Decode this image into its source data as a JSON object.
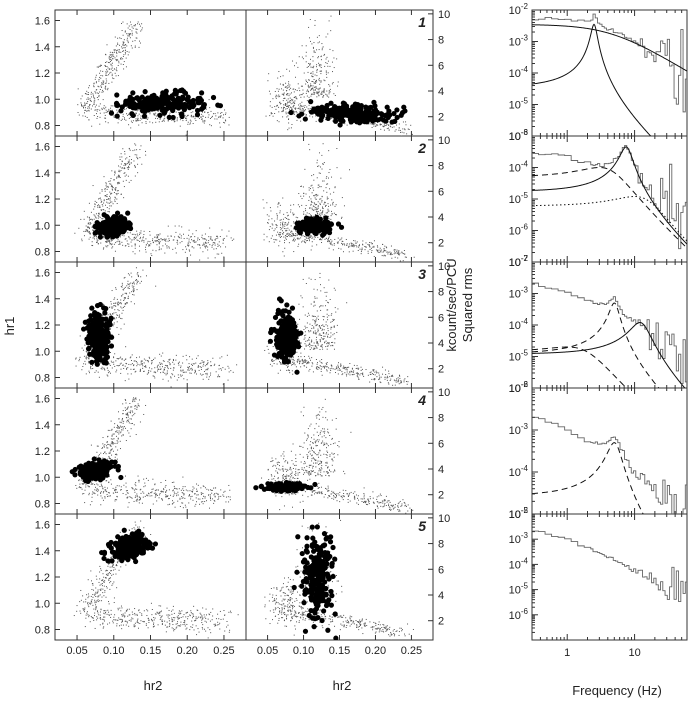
{
  "figure": {
    "left_ylabel": "hr1",
    "mid_ylabel": "kcount/sec/PCU",
    "right_ylabel": "Squared rms",
    "left_xlabel": "hr2",
    "mid_xlabel": "hr2",
    "right_xlabel": "Frequency (Hz)"
  },
  "chart_data": [
    {
      "panel": "color-color",
      "type": "scatter",
      "xlabel": "hr2",
      "ylabel": "hr1",
      "xlim": [
        0.02,
        0.28
      ],
      "ylim": [
        0.72,
        1.68
      ],
      "xticks": [
        0.05,
        0.1,
        0.15,
        0.2,
        0.25
      ],
      "xtick_labels": [
        "0.05",
        "0.10",
        "0.15",
        "0.20",
        "0.25"
      ],
      "yticks": [
        0.8,
        1.0,
        1.2,
        1.4,
        1.6
      ],
      "ytick_labels": [
        "0.8",
        "1.0",
        "1.2",
        "1.4",
        "1.6"
      ],
      "background_track": [
        {
          "x": 0.06,
          "y": 0.98
        },
        {
          "x": 0.07,
          "y": 1.15
        },
        {
          "x": 0.08,
          "y": 1.28
        },
        {
          "x": 0.09,
          "y": 1.38
        },
        {
          "x": 0.1,
          "y": 1.46
        },
        {
          "x": 0.11,
          "y": 1.52
        },
        {
          "x": 0.12,
          "y": 1.56
        },
        {
          "x": 0.065,
          "y": 0.92
        },
        {
          "x": 0.09,
          "y": 0.88
        },
        {
          "x": 0.12,
          "y": 0.88
        },
        {
          "x": 0.15,
          "y": 0.89
        },
        {
          "x": 0.18,
          "y": 0.88
        },
        {
          "x": 0.21,
          "y": 0.87
        },
        {
          "x": 0.24,
          "y": 0.88
        }
      ],
      "rows": [
        {
          "label": "1",
          "highlight": {
            "x_center": 0.165,
            "y_center": 0.97,
            "x_spread": 0.055,
            "y_spread": 0.09,
            "tilt": 0.5
          }
        },
        {
          "label": "2",
          "highlight": {
            "x_center": 0.1,
            "y_center": 0.99,
            "x_spread": 0.02,
            "y_spread": 0.08,
            "tilt": 0.8
          }
        },
        {
          "label": "3",
          "highlight": {
            "x_center": 0.08,
            "y_center": 1.12,
            "x_spread": 0.015,
            "y_spread": 0.2,
            "tilt": 6.0
          }
        },
        {
          "label": "4",
          "highlight": {
            "x_center": 0.075,
            "y_center": 1.05,
            "x_spread": 0.022,
            "y_spread": 0.07,
            "tilt": 4.5
          }
        },
        {
          "label": "5",
          "highlight": {
            "x_center": 0.12,
            "y_center": 1.42,
            "x_spread": 0.025,
            "y_spread": 0.1,
            "tilt": 6.5
          }
        }
      ]
    },
    {
      "panel": "hardness-intensity",
      "type": "scatter",
      "xlabel": "hr2",
      "ylabel": "kcount/sec/PCU",
      "xlim": [
        0.02,
        0.28
      ],
      "ylim": [
        0.5,
        10.3
      ],
      "xticks": [
        0.05,
        0.1,
        0.15,
        0.2,
        0.25
      ],
      "xtick_labels": [
        "0.05",
        "0.10",
        "0.15",
        "0.20",
        "0.25"
      ],
      "yticks": [
        2,
        4,
        6,
        8,
        10
      ],
      "ytick_labels": [
        "2",
        "4",
        "6",
        "8",
        "10"
      ],
      "rows": [
        {
          "label": "1",
          "highlight": {
            "x_center": 0.165,
            "y_center": 2.3,
            "x_spread": 0.06,
            "y_spread": 0.7,
            "tilt": -15
          }
        },
        {
          "label": "2",
          "highlight": {
            "x_center": 0.115,
            "y_center": 3.3,
            "x_spread": 0.02,
            "y_spread": 0.6,
            "tilt": 0
          }
        },
        {
          "label": "3",
          "highlight": {
            "x_center": 0.075,
            "y_center": 4.5,
            "x_spread": 0.015,
            "y_spread": 2.0,
            "tilt": 40
          }
        },
        {
          "label": "4",
          "highlight": {
            "x_center": 0.075,
            "y_center": 2.6,
            "x_spread": 0.025,
            "y_spread": 0.3,
            "tilt": 0
          }
        },
        {
          "label": "5",
          "highlight": {
            "x_center": 0.12,
            "y_center": 5.5,
            "x_spread": 0.02,
            "y_spread": 3.5,
            "tilt": 30
          }
        }
      ]
    },
    {
      "panel": "power-spectra",
      "type": "line",
      "xlabel": "Frequency (Hz)",
      "ylabel": "Squared rms",
      "xscale": "log",
      "yscale": "log",
      "xlim": [
        0.3,
        60
      ],
      "xticks": [
        1,
        10
      ],
      "xtick_labels": [
        "1",
        "10"
      ],
      "rows": [
        {
          "label": "1",
          "ylim": [
            1e-06,
            0.01
          ],
          "ytick_labels": [
            "10-6",
            "10-5",
            "10-4",
            "10-3",
            "10-2"
          ],
          "psd_norm": 0.006,
          "psd_index": 1.3,
          "psd_break": 3.0,
          "qpo": {
            "freq": 2.5,
            "width": 0.25,
            "peak": 0.0035
          },
          "components": [
            {
              "kind": "lorentzian",
              "style": "solid",
              "freq": 2.5,
              "width": 0.25,
              "peak": 0.0035
            },
            {
              "kind": "broken-powerlaw",
              "style": "solid",
              "norm": 0.0035,
              "break": 3.0,
              "index": 1.3
            }
          ]
        },
        {
          "label": "2",
          "ylim": [
            1e-07,
            0.001
          ],
          "ytick_labels": [
            "10-7",
            "10-6",
            "10-5",
            "10-4",
            "10-3"
          ],
          "psd_norm": 0.0006,
          "psd_index": 1.2,
          "psd_break": 1.0,
          "qpo": {
            "freq": 7.5,
            "width": 1.5,
            "peak": 0.00045
          },
          "components": [
            {
              "kind": "lorentzian",
              "style": "solid",
              "freq": 7.5,
              "width": 1.5,
              "peak": 0.00045
            },
            {
              "kind": "lorentzian",
              "style": "dashed",
              "freq": 3.0,
              "width": 3.0,
              "peak": 0.0001
            },
            {
              "kind": "lorentzian",
              "style": "dotted",
              "freq": 10,
              "width": 10,
              "peak": 1.2e-05
            }
          ]
        },
        {
          "label": "3",
          "ylim": [
            1e-06,
            0.01
          ],
          "ytick_labels": [
            "10-6",
            "10-5",
            "10-4",
            "10-3",
            "10-2"
          ],
          "psd_norm": 0.005,
          "psd_index": 1.2,
          "psd_break": 0.6,
          "qpo": {
            "freq": 5.0,
            "width": 0.8,
            "peak": 0.0005
          },
          "components": [
            {
              "kind": "lorentzian",
              "style": "dashed",
              "freq": 5.0,
              "width": 0.8,
              "peak": 0.0005
            },
            {
              "kind": "lorentzian",
              "style": "dashed",
              "freq": 1.0,
              "width": 1.5,
              "peak": 2e-05
            },
            {
              "kind": "lorentzian",
              "style": "solid",
              "freq": 12,
              "width": 4,
              "peak": 0.00012
            }
          ]
        },
        {
          "label": "4",
          "ylim": [
            1e-05,
            0.01
          ],
          "ytick_labels": [
            "10-5",
            "10-4",
            "10-3",
            "10-2"
          ],
          "psd_norm": 0.005,
          "psd_index": 1.3,
          "psd_break": 0.6,
          "qpo": {
            "freq": 5.0,
            "width": 1.2,
            "peak": 0.0005
          },
          "components": [
            {
              "kind": "lorentzian",
              "style": "dashed",
              "freq": 5.0,
              "width": 1.2,
              "peak": 0.0005
            }
          ]
        },
        {
          "label": "5",
          "ylim": [
            1e-07,
            0.01
          ],
          "ytick_labels": [
            "10-6",
            "10-5",
            "10-4",
            "10-3",
            "10-2"
          ],
          "psd_norm": 0.005,
          "psd_index": 1.4,
          "psd_break": 0.6,
          "qpo": null,
          "components": []
        }
      ]
    }
  ]
}
